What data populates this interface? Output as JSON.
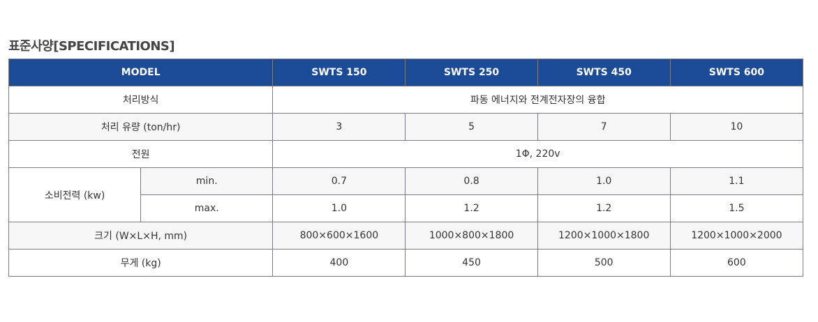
{
  "title": "표준사양[SPECIFICATIONS]",
  "header": {
    "model": "MODEL",
    "models": [
      "SWTS 150",
      "SWTS 250",
      "SWTS 450",
      "SWTS 600"
    ]
  },
  "rows": {
    "method": {
      "label": "처리방식",
      "value": "파동 에너지와 전계전자장의 융합"
    },
    "flow": {
      "label": "처리 유량 (ton/hr)",
      "values": [
        "3",
        "5",
        "7",
        "10"
      ]
    },
    "power": {
      "label": "전원",
      "value": "1Φ, 220v"
    },
    "consumption": {
      "label": "소비전력 (kw)",
      "min_label": "min.",
      "max_label": "max.",
      "min": [
        "0.7",
        "0.8",
        "1.0",
        "1.1"
      ],
      "max": [
        "1.0",
        "1.2",
        "1.2",
        "1.5"
      ]
    },
    "size": {
      "label": "크기 (W×L×H, mm)",
      "values": [
        "800×600×1600",
        "1000×800×1800",
        "1200×1000×1800",
        "1200×1000×2000"
      ]
    },
    "weight": {
      "label": "무게 (kg)",
      "values": [
        "400",
        "450",
        "500",
        "600"
      ]
    }
  }
}
